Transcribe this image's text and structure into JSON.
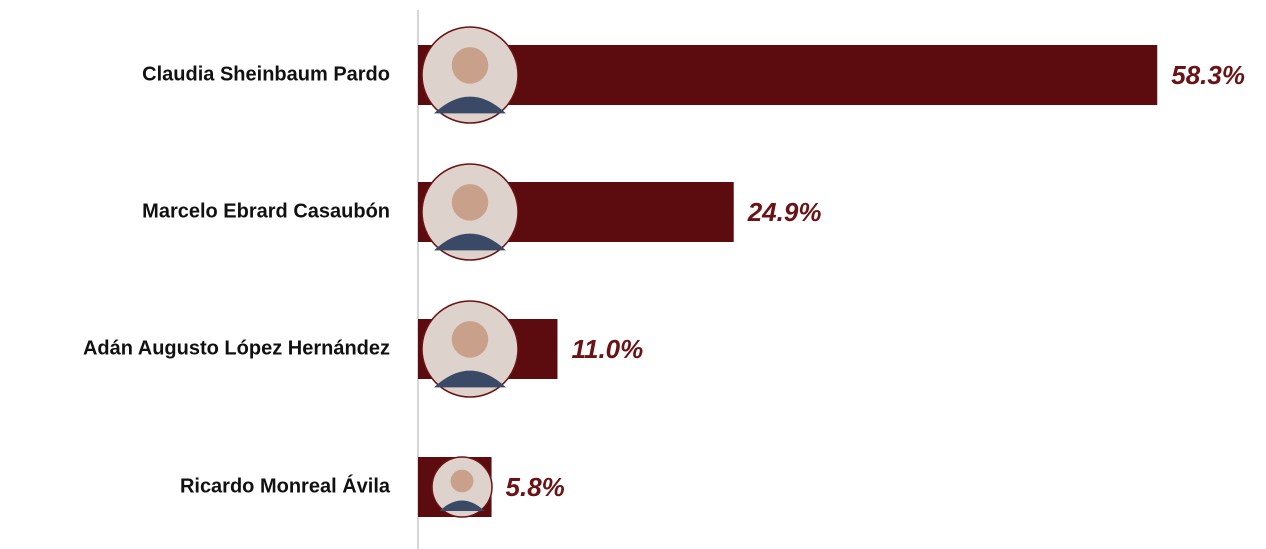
{
  "chart_data": {
    "type": "barh",
    "categories": [
      "Claudia Sheinbaum Pardo",
      "Marcelo Ebrard Casaubón",
      "Adán Augusto López Hernández",
      "Ricardo Monreal Ávila"
    ],
    "values": [
      58.3,
      24.9,
      11.0,
      5.8
    ],
    "value_labels": [
      "58.3%",
      "24.9%",
      "11.0%",
      "5.8%"
    ],
    "color": "#5c0c0e"
  }
}
